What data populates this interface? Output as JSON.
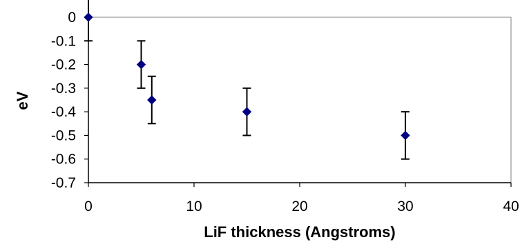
{
  "chart_data": {
    "type": "scatter",
    "title": "",
    "xlabel": "LiF thickness (Angstroms)",
    "ylabel": "eV",
    "xlim": [
      0,
      40
    ],
    "ylim": [
      -0.7,
      0
    ],
    "x_ticks": [
      "0",
      "10",
      "20",
      "30",
      "40"
    ],
    "y_ticks": [
      "0",
      "-0.1",
      "-0.2",
      "-0.3",
      "-0.4",
      "-0.5",
      "-0.6",
      "-0.7"
    ],
    "grid": false,
    "legend": "none",
    "marker": "diamond",
    "marker_color": "#000080",
    "series": [
      {
        "x": [
          0,
          5,
          6,
          15,
          30
        ],
        "y": [
          0,
          -0.2,
          -0.35,
          -0.4,
          -0.5
        ],
        "error": [
          0.1,
          0.1,
          0.1,
          0.1,
          0.1
        ]
      }
    ]
  }
}
